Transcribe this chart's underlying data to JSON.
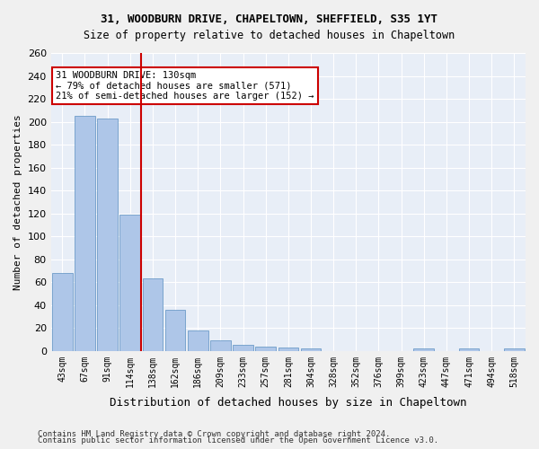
{
  "title1": "31, WOODBURN DRIVE, CHAPELTOWN, SHEFFIELD, S35 1YT",
  "title2": "Size of property relative to detached houses in Chapeltown",
  "xlabel": "Distribution of detached houses by size in Chapeltown",
  "ylabel": "Number of detached properties",
  "categories": [
    "43sqm",
    "67sqm",
    "91sqm",
    "114sqm",
    "138sqm",
    "162sqm",
    "186sqm",
    "209sqm",
    "233sqm",
    "257sqm",
    "281sqm",
    "304sqm",
    "328sqm",
    "352sqm",
    "376sqm",
    "399sqm",
    "423sqm",
    "447sqm",
    "471sqm",
    "494sqm",
    "518sqm"
  ],
  "values": [
    68,
    205,
    203,
    119,
    63,
    36,
    18,
    9,
    5,
    4,
    3,
    2,
    0,
    0,
    0,
    0,
    2,
    0,
    2,
    0,
    2
  ],
  "bar_color": "#aec6e8",
  "bar_edge_color": "#5a8fc0",
  "red_line_x": 3.5,
  "annotation_text": "31 WOODBURN DRIVE: 130sqm\n← 79% of detached houses are smaller (571)\n21% of semi-detached houses are larger (152) →",
  "annotation_box_color": "#ffffff",
  "annotation_box_edge_color": "#cc0000",
  "red_line_color": "#cc0000",
  "bg_color": "#e8eef7",
  "grid_color": "#ffffff",
  "footer1": "Contains HM Land Registry data © Crown copyright and database right 2024.",
  "footer2": "Contains public sector information licensed under the Open Government Licence v3.0.",
  "ylim": [
    0,
    260
  ],
  "yticks": [
    0,
    20,
    40,
    60,
    80,
    100,
    120,
    140,
    160,
    180,
    200,
    220,
    240,
    260
  ]
}
